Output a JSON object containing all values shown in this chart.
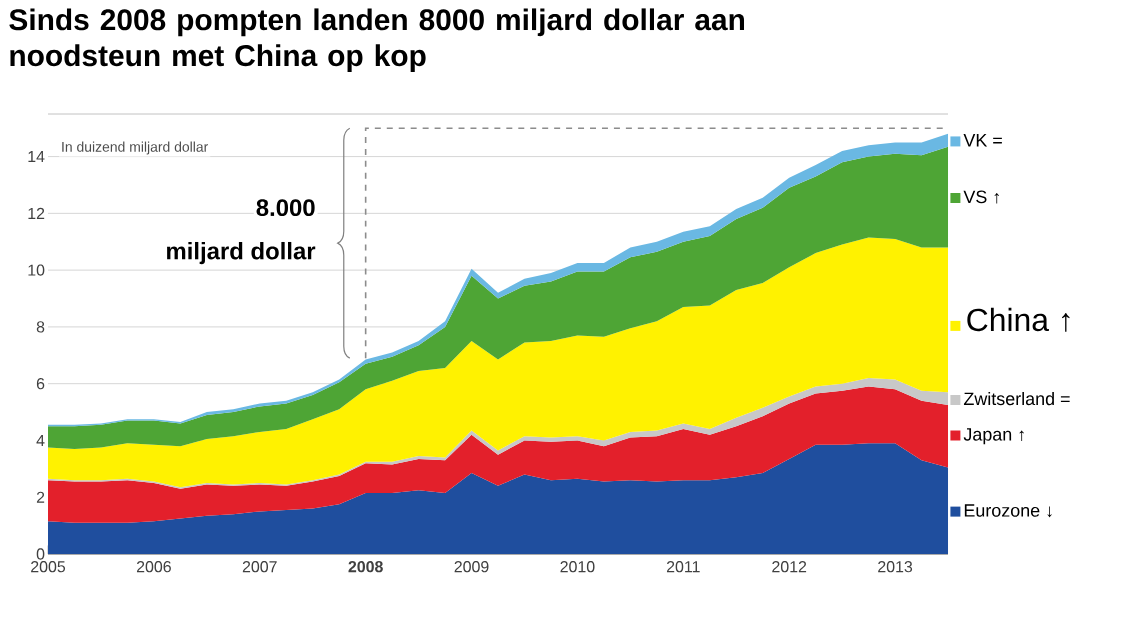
{
  "chart_data": {
    "type": "area",
    "stacked": true,
    "title": "Sinds 2008 pompten landen 8000 miljard dollar aan noodsteun met China op kop",
    "annotations": [
      "In duizend miljard dollar",
      "8.000",
      "miljard dollar"
    ],
    "x": [
      2005,
      2005.25,
      2005.5,
      2005.75,
      2006,
      2006.25,
      2006.5,
      2006.75,
      2007,
      2007.25,
      2007.5,
      2007.75,
      2008,
      2008.25,
      2008.5,
      2008.75,
      2009,
      2009.25,
      2009.5,
      2009.75,
      2010,
      2010.25,
      2010.5,
      2010.75,
      2011,
      2011.25,
      2011.5,
      2011.75,
      2012,
      2012.25,
      2012.5,
      2012.75,
      2013,
      2013.25,
      2013.5
    ],
    "series": [
      {
        "name": "Eurozone ↓",
        "color": "#1f4e9e",
        "values": [
          1.15,
          1.1,
          1.1,
          1.1,
          1.15,
          1.25,
          1.35,
          1.4,
          1.5,
          1.55,
          1.6,
          1.75,
          2.15,
          2.15,
          2.25,
          2.15,
          2.85,
          2.4,
          2.8,
          2.6,
          2.65,
          2.55,
          2.6,
          2.55,
          2.6,
          2.6,
          2.7,
          2.85,
          3.35,
          3.85,
          3.85,
          3.9,
          3.9,
          3.3,
          3.05
        ]
      },
      {
        "name": "Japan ↑",
        "color": "#e3202b",
        "values": [
          1.45,
          1.45,
          1.45,
          1.5,
          1.35,
          1.05,
          1.1,
          1.0,
          0.95,
          0.85,
          0.95,
          1.0,
          1.05,
          1.0,
          1.1,
          1.15,
          1.35,
          1.1,
          1.2,
          1.35,
          1.35,
          1.25,
          1.5,
          1.6,
          1.8,
          1.6,
          1.8,
          2.0,
          1.95,
          1.8,
          1.9,
          2.0,
          1.9,
          2.1,
          2.2
        ]
      },
      {
        "name": "Zwitserland =",
        "color": "#c8c8c8",
        "values": [
          0.05,
          0.05,
          0.05,
          0.05,
          0.05,
          0.05,
          0.05,
          0.05,
          0.05,
          0.05,
          0.05,
          0.05,
          0.05,
          0.1,
          0.1,
          0.1,
          0.15,
          0.15,
          0.15,
          0.15,
          0.15,
          0.2,
          0.2,
          0.2,
          0.2,
          0.2,
          0.3,
          0.3,
          0.25,
          0.25,
          0.25,
          0.3,
          0.35,
          0.35,
          0.45
        ]
      },
      {
        "name": "China ↑",
        "color": "#fff200",
        "values": [
          1.1,
          1.1,
          1.15,
          1.25,
          1.3,
          1.45,
          1.55,
          1.7,
          1.8,
          1.95,
          2.15,
          2.3,
          2.55,
          2.85,
          3.0,
          3.15,
          3.15,
          3.2,
          3.3,
          3.4,
          3.55,
          3.65,
          3.65,
          3.85,
          4.1,
          4.35,
          4.5,
          4.4,
          4.55,
          4.7,
          4.9,
          4.95,
          4.95,
          5.05,
          5.1
        ]
      },
      {
        "name": "VS ↑",
        "color": "#4ea535",
        "values": [
          0.75,
          0.8,
          0.8,
          0.8,
          0.85,
          0.8,
          0.85,
          0.85,
          0.9,
          0.9,
          0.85,
          0.95,
          0.9,
          0.85,
          0.9,
          1.45,
          2.3,
          2.15,
          2.0,
          2.1,
          2.25,
          2.3,
          2.5,
          2.45,
          2.3,
          2.45,
          2.5,
          2.65,
          2.8,
          2.7,
          2.9,
          2.85,
          3.0,
          3.25,
          3.55
        ]
      },
      {
        "name": "VK =",
        "color": "#6ab8e3",
        "values": [
          0.05,
          0.05,
          0.05,
          0.05,
          0.05,
          0.05,
          0.1,
          0.1,
          0.1,
          0.1,
          0.1,
          0.1,
          0.15,
          0.15,
          0.15,
          0.2,
          0.25,
          0.2,
          0.25,
          0.3,
          0.3,
          0.3,
          0.35,
          0.35,
          0.35,
          0.35,
          0.35,
          0.35,
          0.35,
          0.4,
          0.4,
          0.4,
          0.4,
          0.45,
          0.45
        ]
      }
    ],
    "xlim": [
      2005,
      2013.5
    ],
    "ylim": [
      0,
      15.5
    ],
    "xticks": [
      2005,
      2006,
      2007,
      {
        "value": 2008,
        "label": "**2008**"
      },
      2009,
      2010,
      2011,
      2012,
      2013
    ],
    "yticks": [
      0,
      2,
      4,
      6,
      8,
      10,
      12,
      14
    ],
    "grid": "y",
    "legend": "right"
  }
}
